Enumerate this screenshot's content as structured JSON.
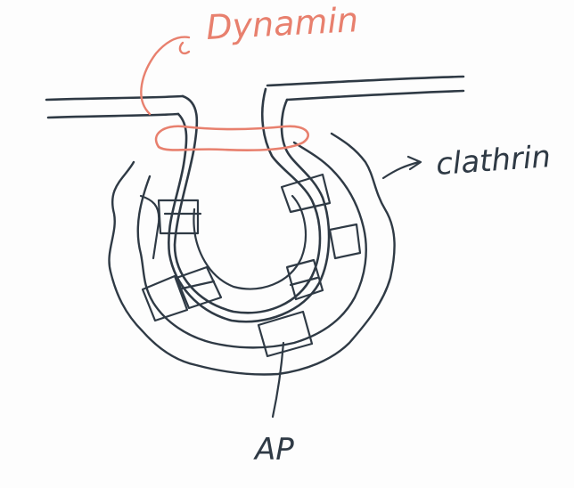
{
  "labels": {
    "dynamin": "Dynamin",
    "clathrin": "clathrin",
    "ap": "AP"
  },
  "colors": {
    "ink": "#2f3a45",
    "dynamin": "#e8806e",
    "background": "#fdfdfd"
  }
}
